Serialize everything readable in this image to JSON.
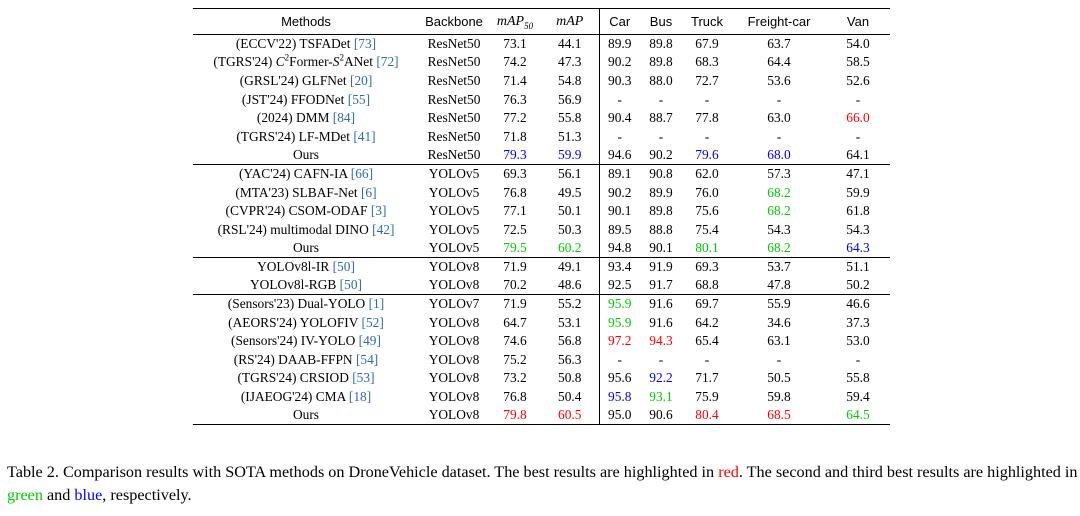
{
  "table": {
    "headers": {
      "methods": "Methods",
      "backbone": "Backbone",
      "map50": "mAP",
      "map50_sub": "50",
      "map": "mAP",
      "car": "Car",
      "bus": "Bus",
      "truck": "Truck",
      "freight_car": "Freight-car",
      "van": "Van"
    },
    "colors": {
      "red": "#ff0000",
      "green": "#00cc00",
      "blue": "#0000ff",
      "ref": "#2e6bb5"
    },
    "groups": [
      [
        {
          "method": "(ECCV'22) TSFADet ",
          "ref": "[73]",
          "backbone": "ResNet50",
          "values": [
            "73.1",
            "44.1",
            "89.9",
            "89.8",
            "67.9",
            "63.7",
            "54.0"
          ],
          "highlights": {}
        },
        {
          "method_parts": [
            "(TGRS'24) ",
            "C",
            "2",
            "Former-",
            "S",
            "2",
            "ANet "
          ],
          "method": "(TGRS'24) C2Former-S2ANet ",
          "ref": "[72]",
          "backbone": "ResNet50",
          "values": [
            "74.2",
            "47.3",
            "90.2",
            "89.8",
            "68.3",
            "64.4",
            "58.5"
          ],
          "highlights": {}
        },
        {
          "method": "(GRSL'24) GLFNet ",
          "ref": "[20]",
          "backbone": "ResNet50",
          "values": [
            "71.4",
            "54.8",
            "90.3",
            "88.0",
            "72.7",
            "53.6",
            "52.6"
          ],
          "highlights": {}
        },
        {
          "method": "(JST'24) FFODNet ",
          "ref": "[55]",
          "backbone": "ResNet50",
          "values": [
            "76.3",
            "56.9",
            "-",
            "-",
            "-",
            "-",
            "-"
          ],
          "highlights": {}
        },
        {
          "method": "(2024) DMM ",
          "ref": "[84]",
          "backbone": "ResNet50",
          "values": [
            "77.2",
            "55.8",
            "90.4",
            "88.7",
            "77.8",
            "63.0",
            "66.0"
          ],
          "highlights": {
            "6": "red"
          }
        },
        {
          "method": "(TGRS'24) LF-MDet ",
          "ref": "[41]",
          "backbone": "ResNet50",
          "values": [
            "71.8",
            "51.3",
            "-",
            "-",
            "-",
            "-",
            "-"
          ],
          "highlights": {}
        },
        {
          "method": "Ours",
          "ref": "",
          "backbone": "ResNet50",
          "values": [
            "79.3",
            "59.9",
            "94.6",
            "90.2",
            "79.6",
            "68.0",
            "64.1"
          ],
          "highlights": {
            "0": "blue",
            "1": "blue",
            "4": "blue",
            "5": "blue"
          }
        }
      ],
      [
        {
          "method": "(YAC'24) CAFN-IA ",
          "ref": "[66]",
          "backbone": "YOLOv5",
          "values": [
            "69.3",
            "56.1",
            "89.1",
            "90.8",
            "62.0",
            "57.3",
            "47.1"
          ],
          "highlights": {}
        },
        {
          "method": "(MTA'23) SLBAF-Net ",
          "ref": "[6]",
          "backbone": "YOLOv5",
          "values": [
            "76.8",
            "49.5",
            "90.2",
            "89.9",
            "76.0",
            "68.2",
            "59.9"
          ],
          "highlights": {
            "5": "green"
          }
        },
        {
          "method": "(CVPR'24) CSOM-ODAF ",
          "ref": "[3]",
          "backbone": "YOLOv5",
          "values": [
            "77.1",
            "50.1",
            "90.1",
            "89.8",
            "75.6",
            "68.2",
            "61.8"
          ],
          "highlights": {
            "5": "green"
          }
        },
        {
          "method": "(RSL'24) multimodal DINO ",
          "ref": "[42]",
          "backbone": "YOLOv5",
          "values": [
            "72.5",
            "50.3",
            "89.5",
            "88.8",
            "75.4",
            "54.3",
            "54.3"
          ],
          "highlights": {}
        },
        {
          "method": "Ours",
          "ref": "",
          "backbone": "YOLOv5",
          "values": [
            "79.5",
            "60.2",
            "94.8",
            "90.1",
            "80.1",
            "68.2",
            "64.3"
          ],
          "highlights": {
            "0": "green",
            "1": "green",
            "4": "green",
            "5": "green",
            "6": "blue"
          }
        }
      ],
      [
        {
          "method": "YOLOv8l-IR ",
          "ref": "[50]",
          "backbone": "YOLOv8",
          "values": [
            "71.9",
            "49.1",
            "93.4",
            "91.9",
            "69.3",
            "53.7",
            "51.1"
          ],
          "highlights": {}
        },
        {
          "method": "YOLOv8l-RGB ",
          "ref": "[50]",
          "backbone": "YOLOv8",
          "values": [
            "70.2",
            "48.6",
            "92.5",
            "91.7",
            "68.8",
            "47.8",
            "50.2"
          ],
          "highlights": {}
        }
      ],
      [
        {
          "method": "(Sensors'23) Dual-YOLO ",
          "ref": "[1]",
          "backbone": "YOLOv7",
          "values": [
            "71.9",
            "55.2",
            "95.9",
            "91.6",
            "69.7",
            "55.9",
            "46.6"
          ],
          "highlights": {
            "2": "green"
          }
        },
        {
          "method": "(AEORS'24) YOLOFIV ",
          "ref": "[52]",
          "backbone": "YOLOv8",
          "values": [
            "64.7",
            "53.1",
            "95.9",
            "91.6",
            "64.2",
            "34.6",
            "37.3"
          ],
          "highlights": {
            "2": "green"
          }
        },
        {
          "method": "(Sensors'24) IV-YOLO ",
          "ref": "[49]",
          "backbone": "YOLOv8",
          "values": [
            "74.6",
            "56.8",
            "97.2",
            "94.3",
            "65.4",
            "63.1",
            "53.0"
          ],
          "highlights": {
            "2": "red",
            "3": "red"
          }
        },
        {
          "method": "(RS'24) DAAB-FFPN ",
          "ref": "[54]",
          "backbone": "YOLOv8",
          "values": [
            "75.2",
            "56.3",
            "-",
            "-",
            "-",
            "-",
            "-"
          ],
          "highlights": {}
        },
        {
          "method": "(TGRS'24) CRSIOD ",
          "ref": "[53]",
          "backbone": "YOLOv8",
          "values": [
            "73.2",
            "50.8",
            "95.6",
            "92.2",
            "71.7",
            "50.5",
            "55.8"
          ],
          "highlights": {
            "3": "blue"
          }
        },
        {
          "method": "(IJAEOG'24) CMA ",
          "ref": "[18]",
          "backbone": "YOLOv8",
          "values": [
            "76.8",
            "50.4",
            "95.8",
            "93.1",
            "75.9",
            "59.8",
            "59.4"
          ],
          "highlights": {
            "2": "blue",
            "3": "green"
          }
        },
        {
          "method": "Ours",
          "ref": "",
          "backbone": "YOLOv8",
          "values": [
            "79.8",
            "60.5",
            "95.0",
            "90.6",
            "80.4",
            "68.5",
            "64.5"
          ],
          "highlights": {
            "0": "red",
            "1": "red",
            "4": "red",
            "5": "red",
            "6": "green"
          }
        }
      ]
    ]
  },
  "caption": {
    "prefix": "Table 2. Comparison results with SOTA methods on DroneVehicle dataset. The best results are highlighted in ",
    "red_word": "red",
    "middle": ". The second and third best results are highlighted in ",
    "green_word": "green",
    "and": " and ",
    "blue_word": "blue",
    "suffix": ", respectively."
  }
}
